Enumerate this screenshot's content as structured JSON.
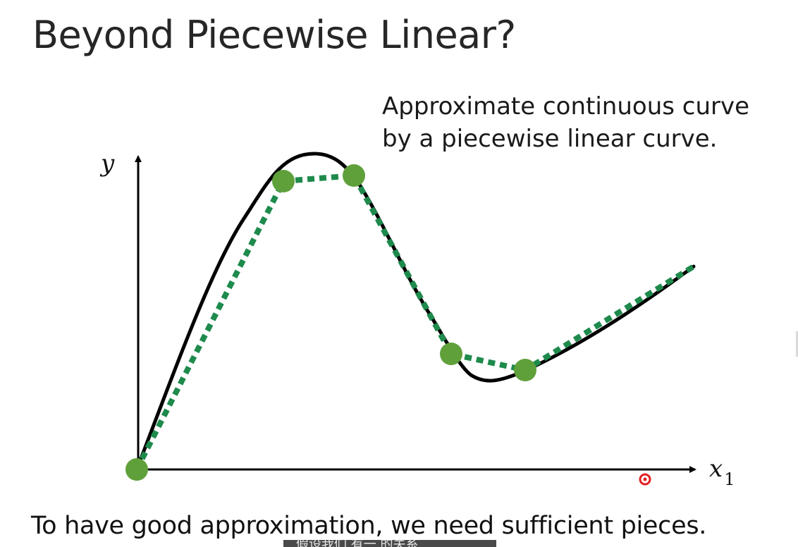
{
  "slide": {
    "title": "Beyond Piecewise Linear?",
    "side_note": {
      "line1": "Approximate continuous curve",
      "line2": "by a piecewise linear curve."
    },
    "bottom_note": "To have good approximation, we need sufficient pieces.",
    "subtitle_overlay": "假设我们  有一 的关系"
  },
  "axes": {
    "y_label": "y",
    "x_label": "x",
    "x_subscript": "1"
  },
  "colors": {
    "curve": "#000000",
    "piecewise_dotted": "#1e8a4c",
    "points": "#5fa03a",
    "pointer_dot": "#e02020",
    "axis": "#000000"
  },
  "icons": {
    "pointer": "red-cursor-dot-icon"
  }
}
